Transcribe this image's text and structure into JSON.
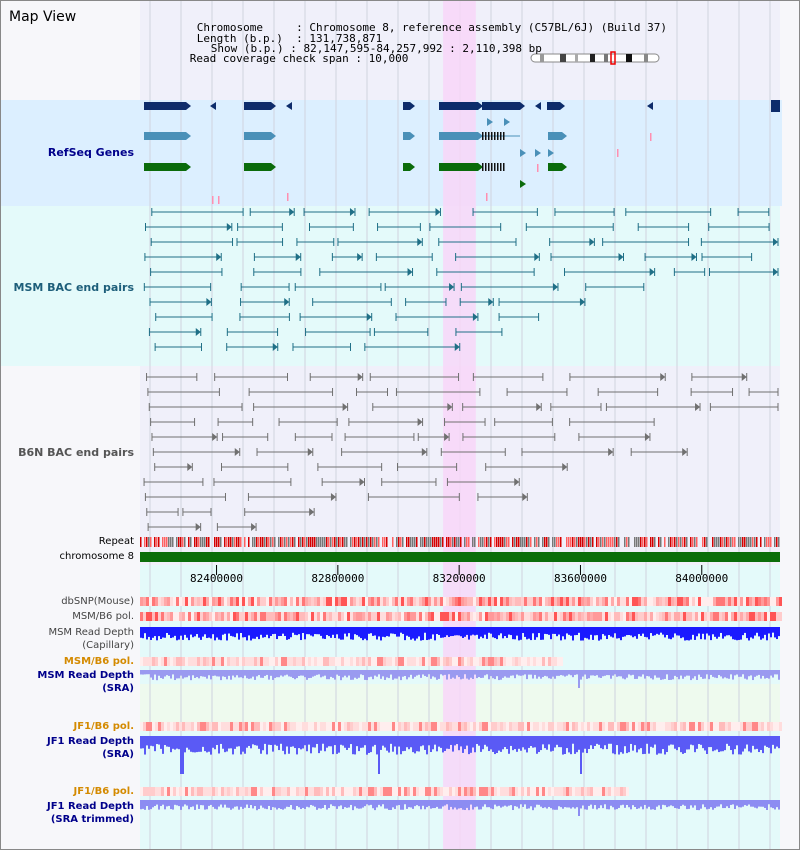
{
  "view": {
    "title": "Map View",
    "range_start": 82147595,
    "range_end": 84257992,
    "highlight_start": 83147000,
    "highlight_end": 83255000
  },
  "info": {
    "chromosome_key": "Chromosome",
    "chromosome_value": "Chromosome 8, reference assembly (C57BL/6J) (Build 37)",
    "length_key": "Length (b.p.)",
    "length_value": "131,738,871",
    "show_key": "Show (b.p.)",
    "show_value": "82,147,595-84,257,992 : 2,110,398 bp",
    "coverage_key": "Read coverage check span",
    "coverage_value": "10,000"
  },
  "axis": {
    "ticks": [
      "82400000",
      "82800000",
      "83200000",
      "83600000",
      "84000000"
    ],
    "tick_values": [
      82400000,
      82800000,
      83200000,
      83600000,
      84000000
    ]
  },
  "tracks": {
    "refseq": "RefSeq Genes",
    "msm_bac": "MSM BAC end pairs",
    "b6n_bac": "B6N BAC end pairs",
    "repeat": "Repeat",
    "chromosome": "chromosome 8",
    "dbsnp": "dbSNP(Mouse)",
    "msm_b6_pol": "MSM/B6 pol.",
    "msm_depth_cap_1": "MSM Read Depth",
    "msm_depth_cap_2": "(Capillary)",
    "msm_b6_pol_2": "MSM/B6 pol.",
    "msm_depth_sra_1": "MSM Read Depth",
    "msm_depth_sra_2": "(SRA)",
    "jf1_b6_pol": "JF1/B6 pol.",
    "jf1_depth_sra_1": "JF1 Read Depth",
    "jf1_depth_sra_2": "(SRA)",
    "jf1_b6_pol_2": "JF1/B6 pol.",
    "jf1_depth_trim_1": "JF1 Read Depth",
    "jf1_depth_trim_2": "(SRA trimmed)"
  },
  "colors": {
    "refseq_bg": "#dcefff",
    "bac_bg": "#e4fafa",
    "highlight": "#f8d6f8",
    "gene_navy": "#0d2c6b",
    "gene_steel": "#4a90b8",
    "gene_green": "#0b6b0b",
    "bac_msm": "#1f6f86",
    "bac_b6n": "#707070",
    "chromosome": "#0a6e0a",
    "depth_blue": "#1a1aff",
    "depth_light": "#7f7ff5",
    "label_navy": "#00008b",
    "label_teal": "#1d5e7a",
    "label_gray": "#555555",
    "label_orange": "#d48a00"
  }
}
